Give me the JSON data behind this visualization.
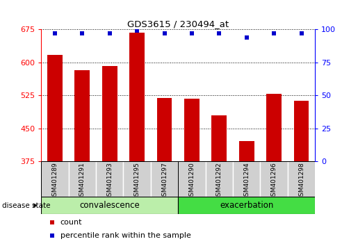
{
  "title": "GDS3615 / 230494_at",
  "samples": [
    "GSM401289",
    "GSM401291",
    "GSM401293",
    "GSM401295",
    "GSM401297",
    "GSM401290",
    "GSM401292",
    "GSM401294",
    "GSM401296",
    "GSM401298"
  ],
  "counts": [
    617,
    583,
    592,
    668,
    519,
    517,
    480,
    420,
    528,
    512
  ],
  "percentiles": [
    97,
    97,
    97,
    99,
    97,
    97,
    97,
    94,
    97,
    97
  ],
  "groups": [
    "convalescence",
    "convalescence",
    "convalescence",
    "convalescence",
    "convalescence",
    "exacerbation",
    "exacerbation",
    "exacerbation",
    "exacerbation",
    "exacerbation"
  ],
  "ylim_left": [
    375,
    675
  ],
  "yticks_left": [
    375,
    450,
    525,
    600,
    675
  ],
  "ylim_right": [
    0,
    100
  ],
  "yticks_right": [
    0,
    25,
    50,
    75,
    100
  ],
  "bar_color": "#cc0000",
  "dot_color": "#0000cc",
  "bar_width": 0.55,
  "conv_color": "#bbeeaa",
  "exac_color": "#44dd44",
  "tick_bg_color": "#d0d0d0",
  "background_color": "#ffffff",
  "n_conv": 5,
  "n_exac": 5
}
